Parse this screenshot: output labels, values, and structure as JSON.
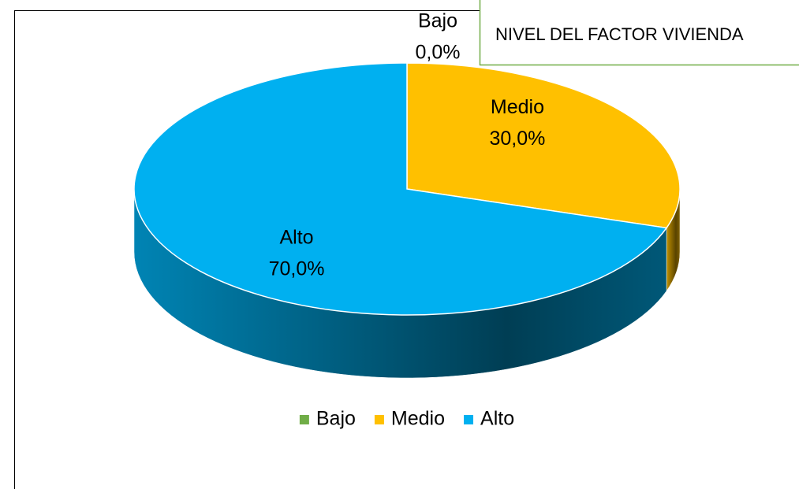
{
  "chart_data": {
    "type": "pie3d",
    "title": "NIVEL DEL FACTOR VIVIENDA",
    "categories": [
      "Bajo",
      "Medio",
      "Alto"
    ],
    "values": [
      0,
      30,
      70
    ],
    "value_labels": [
      "0,0%",
      "30,0%",
      "70,0%"
    ],
    "colors": [
      "#70ad47",
      "#ffc000",
      "#00b0f0"
    ],
    "legend": "bottom"
  }
}
